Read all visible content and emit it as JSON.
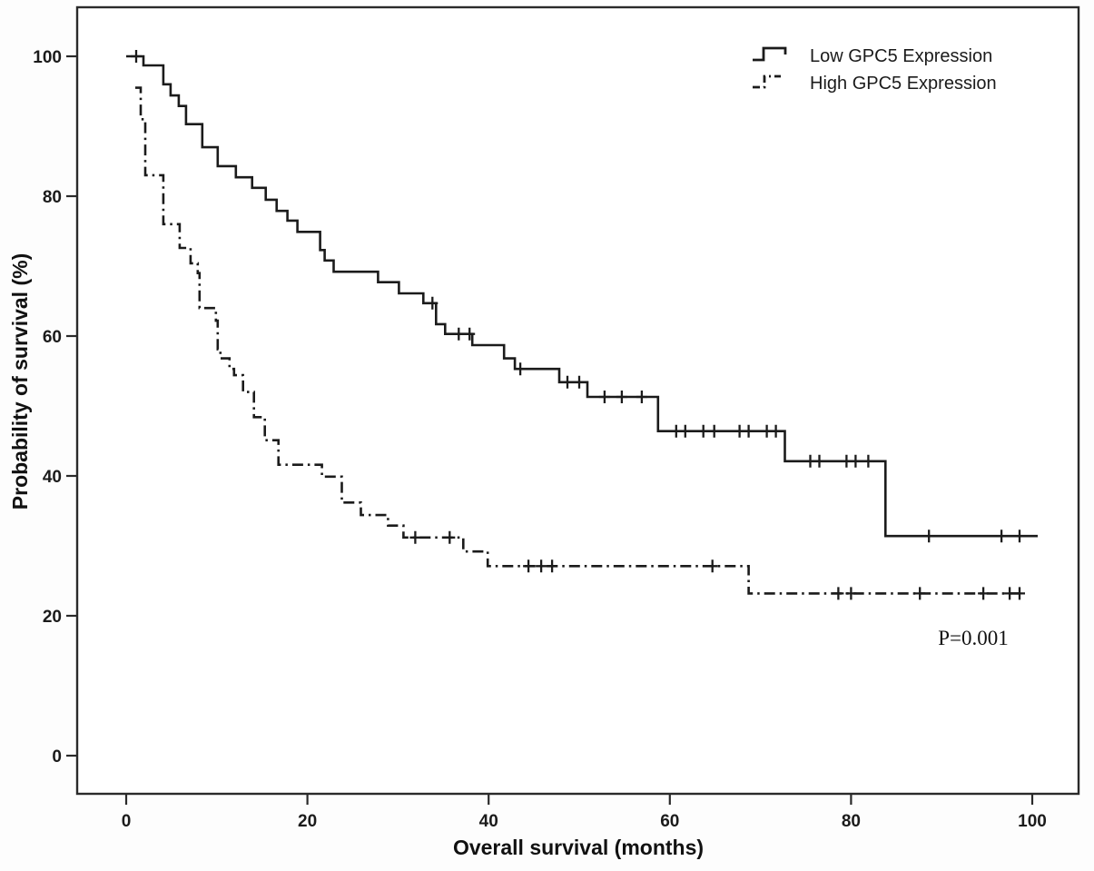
{
  "figure": {
    "background_color": "#ffffff",
    "line_color": "#1b1b1b"
  },
  "chart_data": {
    "type": "line",
    "subtype": "kaplan-meier-step-curves",
    "title": "",
    "xlabel": "Overall survival (months)",
    "ylabel": "Probability of survival (%)",
    "x_ticks": [
      0,
      20,
      40,
      60,
      80,
      100
    ],
    "y_ticks": [
      0,
      20,
      40,
      60,
      80,
      100
    ],
    "xlim": [
      -5.4,
      105.1
    ],
    "ylim": [
      -5.5,
      107.0
    ],
    "grid": false,
    "legend_position": "top-right-inside",
    "annotation": {
      "text": "P=0.001"
    },
    "line_color": "#1b1b1b",
    "series": [
      {
        "name": "Low GPC5 Expression",
        "line_style": "solid",
        "steps": [
          [
            0,
            100
          ],
          [
            1.9,
            98.7
          ],
          [
            4.1,
            96.0
          ],
          [
            4.9,
            94.4
          ],
          [
            5.8,
            92.9
          ],
          [
            6.6,
            90.3
          ],
          [
            8.4,
            87.0
          ],
          [
            10.1,
            84.3
          ],
          [
            12.1,
            82.7
          ],
          [
            13.9,
            81.2
          ],
          [
            15.4,
            79.5
          ],
          [
            16.6,
            77.9
          ],
          [
            17.8,
            76.5
          ],
          [
            18.9,
            74.9
          ],
          [
            21.4,
            72.3
          ],
          [
            21.9,
            70.8
          ],
          [
            22.9,
            69.2
          ],
          [
            27.8,
            67.7
          ],
          [
            30.1,
            66.1
          ],
          [
            32.8,
            64.7
          ],
          [
            34.2,
            61.7
          ],
          [
            35.2,
            60.3
          ],
          [
            38.2,
            58.7
          ],
          [
            41.7,
            56.8
          ],
          [
            42.9,
            55.3
          ],
          [
            47.8,
            53.4
          ],
          [
            50.9,
            51.3
          ],
          [
            58.7,
            46.4
          ],
          [
            72.7,
            42.1
          ],
          [
            83.8,
            31.4
          ]
        ],
        "end_month": 100.6,
        "censor_marks": [
          [
            1.1,
            100
          ],
          [
            33.8,
            64.7
          ],
          [
            36.7,
            60.3
          ],
          [
            37.9,
            60.3
          ],
          [
            43.5,
            55.3
          ],
          [
            48.7,
            53.4
          ],
          [
            50.0,
            53.4
          ],
          [
            52.8,
            51.3
          ],
          [
            54.7,
            51.3
          ],
          [
            56.9,
            51.3
          ],
          [
            60.7,
            46.4
          ],
          [
            61.7,
            46.4
          ],
          [
            63.7,
            46.4
          ],
          [
            64.9,
            46.4
          ],
          [
            67.7,
            46.4
          ],
          [
            68.7,
            46.4
          ],
          [
            70.7,
            46.4
          ],
          [
            71.7,
            46.4
          ],
          [
            75.5,
            42.1
          ],
          [
            76.5,
            42.1
          ],
          [
            79.5,
            42.1
          ],
          [
            80.5,
            42.1
          ],
          [
            81.9,
            42.1
          ],
          [
            88.6,
            31.4
          ],
          [
            96.6,
            31.4
          ],
          [
            98.6,
            31.4
          ]
        ]
      },
      {
        "name": "High GPC5 Expression",
        "line_style": "dash-dot",
        "steps": [
          [
            1.0,
            95.5
          ],
          [
            1.6,
            91.0
          ],
          [
            2.1,
            83.0
          ],
          [
            4.1,
            76.0
          ],
          [
            5.9,
            72.6
          ],
          [
            7.1,
            70.4
          ],
          [
            7.9,
            69.0
          ],
          [
            8.1,
            64.0
          ],
          [
            9.9,
            62.2
          ],
          [
            10.1,
            58.1
          ],
          [
            10.4,
            56.8
          ],
          [
            11.4,
            55.3
          ],
          [
            11.9,
            54.4
          ],
          [
            12.9,
            52.0
          ],
          [
            14.1,
            48.4
          ],
          [
            15.3,
            45.1
          ],
          [
            16.8,
            41.6
          ],
          [
            21.6,
            39.9
          ],
          [
            23.8,
            36.2
          ],
          [
            25.9,
            34.4
          ],
          [
            28.9,
            32.9
          ],
          [
            30.6,
            31.2
          ],
          [
            37.2,
            29.2
          ],
          [
            39.9,
            27.1
          ],
          [
            68.7,
            23.2
          ]
        ],
        "end_month": 99.0,
        "censor_marks": [
          [
            31.9,
            31.2
          ],
          [
            35.7,
            31.2
          ],
          [
            44.4,
            27.1
          ],
          [
            45.8,
            27.1
          ],
          [
            47.0,
            27.1
          ],
          [
            64.7,
            27.1
          ],
          [
            78.6,
            23.2
          ],
          [
            80.0,
            23.2
          ],
          [
            87.6,
            23.2
          ],
          [
            94.6,
            23.2
          ],
          [
            97.5,
            23.2
          ],
          [
            98.6,
            23.2
          ]
        ]
      }
    ]
  }
}
